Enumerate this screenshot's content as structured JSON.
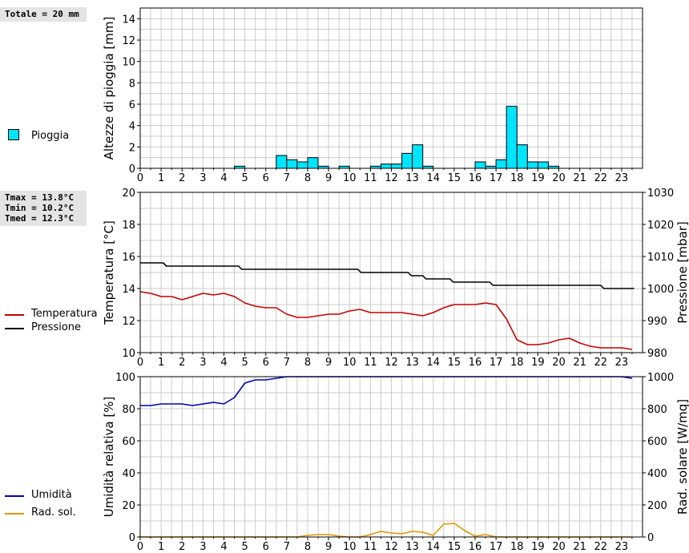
{
  "summary": {
    "rain_total": "Totale = 20 mm",
    "tmax": "Tmax = 13.8°C",
    "tmin": "Tmin = 10.2°C",
    "tmed": "Tmed = 12.3°C"
  },
  "colors": {
    "rain": "#00e5ff",
    "temperature": "#cc0000",
    "pressure": "#000000",
    "humidity": "#0000bb",
    "radiation": "#e69500",
    "grid": "#cccccc"
  },
  "chart_data": [
    {
      "type": "bar",
      "ylabel": "Altezze di pioggia [mm]",
      "ylim": [
        0,
        15
      ],
      "yticks": [
        0,
        2,
        4,
        6,
        8,
        10,
        12,
        14
      ],
      "xlim": [
        0,
        24
      ],
      "xticks": [
        "0",
        "1",
        "2",
        "3",
        "4",
        "5",
        "6",
        "7",
        "8",
        "9",
        "10",
        "11",
        "12",
        "13",
        "14",
        "15",
        "16",
        "17",
        "18",
        "19",
        "20",
        "21",
        "22",
        "23"
      ],
      "grid": true,
      "legend": "left",
      "bar_width_hours": 0.5,
      "series": [
        {
          "name": "Pioggia",
          "x": [
            4.5,
            6.5,
            7.0,
            7.5,
            8.0,
            8.5,
            9.5,
            11.0,
            11.5,
            12.0,
            12.5,
            13.0,
            13.5,
            16.0,
            16.5,
            17.0,
            17.5,
            18.0,
            18.5,
            19.0,
            19.5
          ],
          "values": [
            0.2,
            1.2,
            0.8,
            0.6,
            1.0,
            0.2,
            0.2,
            0.2,
            0.4,
            0.4,
            1.4,
            2.2,
            0.2,
            0.6,
            0.2,
            0.8,
            5.8,
            2.2,
            0.6,
            0.6,
            0.2
          ]
        }
      ]
    },
    {
      "type": "line",
      "ylabel": "Temperatura [°C]",
      "y2label": "Pressione [mbar]",
      "ylim": [
        10,
        20
      ],
      "yticks": [
        10,
        12,
        14,
        16,
        18,
        20
      ],
      "y2lim": [
        980,
        1030
      ],
      "y2ticks": [
        980,
        990,
        1000,
        1010,
        1020,
        1030
      ],
      "xlim": [
        0,
        24
      ],
      "xticks": [
        "0",
        "1",
        "2",
        "3",
        "4",
        "5",
        "6",
        "7",
        "8",
        "9",
        "10",
        "11",
        "12",
        "13",
        "14",
        "15",
        "16",
        "17",
        "18",
        "19",
        "20",
        "21",
        "22",
        "23"
      ],
      "grid": true,
      "legend": "left",
      "series": [
        {
          "name": "Temperatura",
          "axis": "left",
          "x": [
            0,
            0.5,
            1,
            1.5,
            2,
            2.5,
            3,
            3.5,
            4,
            4.5,
            5,
            5.5,
            6,
            6.5,
            7,
            7.5,
            8,
            8.5,
            9,
            9.5,
            10,
            10.5,
            11,
            11.5,
            12,
            12.5,
            13,
            13.5,
            14,
            14.5,
            15,
            15.5,
            16,
            16.5,
            17,
            17.5,
            18,
            18.5,
            19,
            19.5,
            20,
            20.5,
            21,
            21.5,
            22,
            22.5,
            23,
            23.5
          ],
          "values": [
            13.8,
            13.7,
            13.5,
            13.5,
            13.3,
            13.5,
            13.7,
            13.6,
            13.7,
            13.5,
            13.1,
            12.9,
            12.8,
            12.8,
            12.4,
            12.2,
            12.2,
            12.3,
            12.4,
            12.4,
            12.6,
            12.7,
            12.5,
            12.5,
            12.5,
            12.5,
            12.4,
            12.3,
            12.5,
            12.8,
            13.0,
            13.0,
            13.0,
            13.1,
            13.0,
            12.1,
            10.8,
            10.5,
            10.5,
            10.6,
            10.8,
            10.9,
            10.6,
            10.4,
            10.3,
            10.3,
            10.3,
            10.2
          ]
        },
        {
          "name": "Pressione",
          "axis": "right",
          "x": [
            0,
            1.1,
            1.25,
            4.7,
            4.85,
            10.4,
            10.55,
            11.7,
            11.85,
            12.8,
            12.95,
            13.5,
            13.65,
            14.8,
            14.95,
            16.0,
            16.15,
            16.7,
            16.85,
            21.0,
            21.15,
            22.0,
            22.15,
            23.6
          ],
          "values": [
            1008,
            1008,
            1007,
            1007,
            1006,
            1006,
            1005,
            1005,
            1005,
            1005,
            1004,
            1004,
            1003,
            1003,
            1002,
            1002,
            1002,
            1002,
            1001,
            1001,
            1001,
            1001,
            1000,
            1000
          ]
        }
      ]
    },
    {
      "type": "line",
      "ylabel": "Umidità relativa [%]",
      "y2label": "Rad. solare [W/mq]",
      "ylim": [
        0,
        100
      ],
      "yticks": [
        0,
        20,
        40,
        60,
        80,
        100
      ],
      "y2lim": [
        0,
        1000
      ],
      "y2ticks": [
        0,
        200,
        400,
        600,
        800,
        1000
      ],
      "xlim": [
        0,
        24
      ],
      "xticks": [
        "0",
        "1",
        "2",
        "3",
        "4",
        "5",
        "6",
        "7",
        "8",
        "9",
        "10",
        "11",
        "12",
        "13",
        "14",
        "15",
        "16",
        "17",
        "18",
        "19",
        "20",
        "21",
        "22",
        "23"
      ],
      "grid": true,
      "legend": "left",
      "series": [
        {
          "name": "Umidità",
          "axis": "left",
          "x": [
            0,
            0.5,
            1,
            1.5,
            2,
            2.5,
            3,
            3.5,
            4,
            4.5,
            5,
            5.5,
            6,
            6.5,
            7,
            7.5,
            8,
            9,
            10,
            11,
            12,
            13,
            14,
            15,
            16,
            17,
            18,
            19,
            20,
            21,
            22,
            23,
            23.5
          ],
          "values": [
            82,
            82,
            83,
            83,
            83,
            82,
            83,
            84,
            83,
            87,
            96,
            98,
            98,
            99,
            100,
            100,
            100,
            100,
            100,
            100,
            100,
            100,
            100,
            100,
            100,
            100,
            100,
            100,
            100,
            100,
            100,
            100,
            99
          ]
        },
        {
          "name": "Rad. sol.",
          "axis": "right",
          "x": [
            0,
            1,
            2,
            3,
            4,
            5,
            6,
            7,
            7.5,
            8,
            8.5,
            9,
            9.5,
            10,
            10.5,
            11,
            11.5,
            12,
            12.5,
            13,
            13.5,
            14,
            14.5,
            15,
            15.5,
            16,
            16.5,
            17,
            18,
            19,
            20,
            21,
            22,
            23,
            23.5
          ],
          "values": [
            0,
            0,
            0,
            0,
            0,
            0,
            0,
            0,
            0,
            10,
            15,
            15,
            5,
            0,
            0,
            15,
            35,
            25,
            20,
            35,
            30,
            10,
            80,
            85,
            40,
            5,
            15,
            0,
            0,
            0,
            0,
            0,
            0,
            0,
            0
          ]
        }
      ]
    }
  ]
}
